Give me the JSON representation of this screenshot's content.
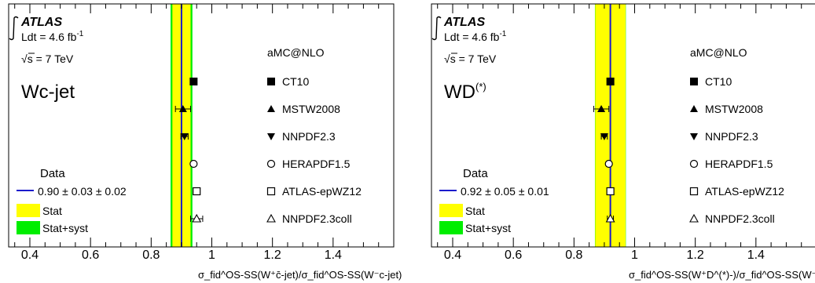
{
  "chart_data": [
    {
      "type": "scatter",
      "experiment": "ATLAS",
      "lumi_prefix": "Ldt = 4.6 fb",
      "lumi_exp": "-1",
      "energy_suffix": "s = 7 TeV",
      "process_label": "Wc-jet",
      "process_sup": "",
      "generator_label": "aMC@NLO",
      "data_legend_title": "Data",
      "data_legend_value": "0.90 ± 0.03 ± 0.02",
      "stat_label": "Stat",
      "statsyst_label": "Stat+syst",
      "data_value": 0.9,
      "stat_band": [
        0.87,
        0.93
      ],
      "statsyst_band": [
        0.864,
        0.936
      ],
      "xlim": [
        0.33,
        1.6
      ],
      "ticks": [
        "0.4",
        "0.6",
        "0.8",
        "1",
        "1.2",
        "1.4"
      ],
      "xlabel": "σ_fid^OS-SS(W⁺c̄-jet)/σ_fid^OS-SS(W⁻c-jet)",
      "series": [
        {
          "name": "CT10",
          "marker": "square-filled",
          "value": 0.94,
          "err": 0.0
        },
        {
          "name": "MSTW2008",
          "marker": "triangle-up-filled",
          "value": 0.905,
          "err": 0.025
        },
        {
          "name": "NNPDF2.3",
          "marker": "triangle-down-filled",
          "value": 0.91,
          "err": 0.012
        },
        {
          "name": "HERAPDF1.5",
          "marker": "circle-open",
          "value": 0.94,
          "err": 0.0
        },
        {
          "name": "ATLAS-epWZ12",
          "marker": "square-open",
          "value": 0.95,
          "err": 0.0
        },
        {
          "name": "NNPDF2.3coll",
          "marker": "triangle-up-open",
          "value": 0.95,
          "err": 0.02
        }
      ]
    },
    {
      "type": "scatter",
      "experiment": "ATLAS",
      "lumi_prefix": "Ldt = 4.6 fb",
      "lumi_exp": "-1",
      "energy_suffix": "s = 7 TeV",
      "process_label": "WD",
      "process_sup": "(*)",
      "generator_label": "aMC@NLO",
      "data_legend_title": "Data",
      "data_legend_value": "0.92 ± 0.05 ± 0.01",
      "stat_label": "Stat",
      "statsyst_label": "Stat+syst",
      "data_value": 0.92,
      "stat_band": [
        0.87,
        0.97
      ],
      "statsyst_band": [
        0.869,
        0.971
      ],
      "xlim": [
        0.33,
        1.6
      ],
      "ticks": [
        "0.4",
        "0.6",
        "0.8",
        "1",
        "1.2",
        "1.4"
      ],
      "xlabel": "σ_fid^OS-SS(W⁺D^(*)-)/σ_fid^OS-SS(W⁻D^(*)+)",
      "series": [
        {
          "name": "CT10",
          "marker": "square-filled",
          "value": 0.92,
          "err": 0.0
        },
        {
          "name": "MSTW2008",
          "marker": "triangle-up-filled",
          "value": 0.89,
          "err": 0.025
        },
        {
          "name": "NNPDF2.3",
          "marker": "triangle-down-filled",
          "value": 0.9,
          "err": 0.01
        },
        {
          "name": "HERAPDF1.5",
          "marker": "circle-open",
          "value": 0.915,
          "err": 0.0
        },
        {
          "name": "ATLAS-epWZ12",
          "marker": "square-open",
          "value": 0.92,
          "err": 0.0
        },
        {
          "name": "NNPDF2.3coll",
          "marker": "triangle-up-open",
          "value": 0.92,
          "err": 0.01
        }
      ]
    }
  ],
  "colors": {
    "stat": "#ffff00",
    "statsyst": "#00ee00",
    "data_line": "#1a1acc",
    "axis": "#000000"
  }
}
